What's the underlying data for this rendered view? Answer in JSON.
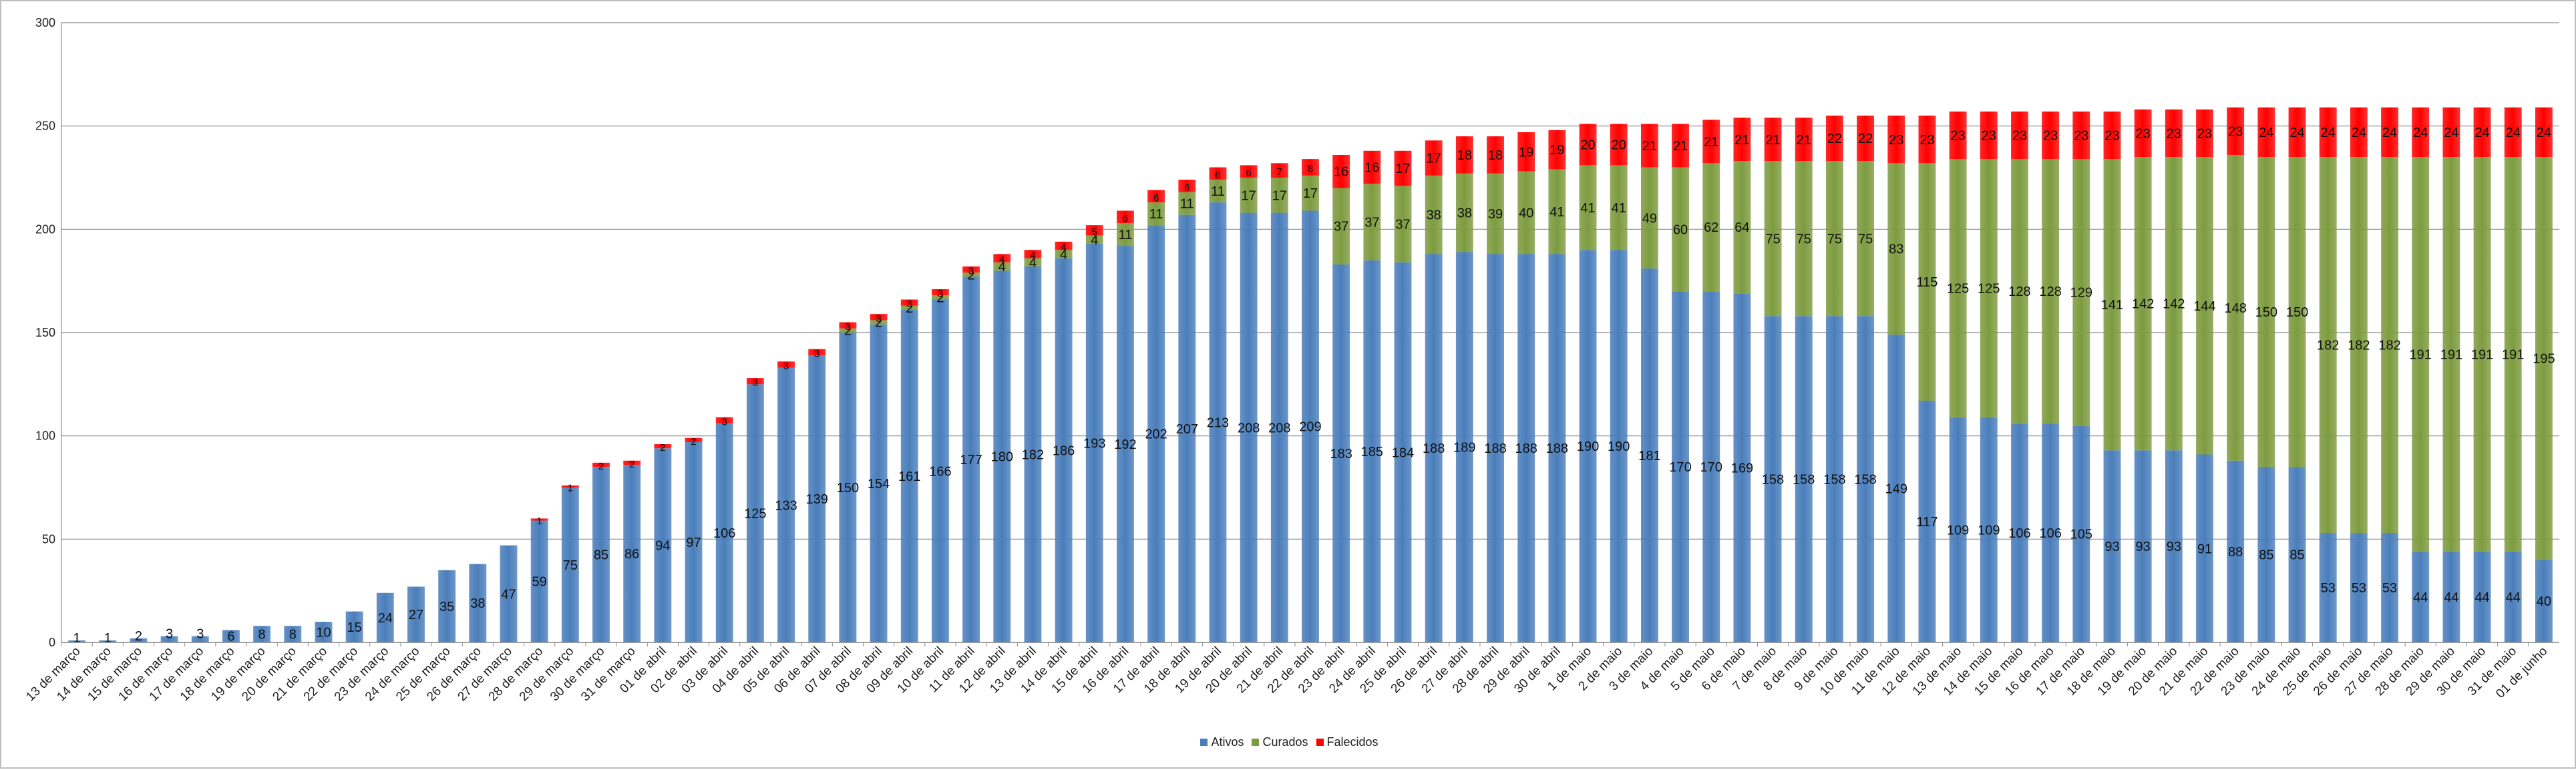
{
  "chart_data": {
    "type": "bar",
    "stacked": true,
    "ylim": [
      0,
      300
    ],
    "yticks": [
      0,
      50,
      100,
      150,
      200,
      250,
      300
    ],
    "grid": true,
    "legend_position": "bottom",
    "categories": [
      "13 de março",
      "14 de março",
      "15 de março",
      "16 de março",
      "17 de março",
      "18 de março",
      "19 de março",
      "20 de março",
      "21 de março",
      "22 de março",
      "23 de março",
      "24 de março",
      "25 de março",
      "26 de março",
      "27 de março",
      "28 de março",
      "29 de março",
      "30 de março",
      "31 de março",
      "01 de abril",
      "02 de abril",
      "03 de abril",
      "04 de abril",
      "05 de abril",
      "06 de abril",
      "07 de abril",
      "08 de abril",
      "09 de abril",
      "10 de abril",
      "11 de abril",
      "12 de abril",
      "13 de abril",
      "14 de abril",
      "15 de abril",
      "16 de abril",
      "17 de abril",
      "18 de abril",
      "19 de abril",
      "20 de abril",
      "21 de abril",
      "22 de abril",
      "23 de abril",
      "24 de abril",
      "25 de abril",
      "26 de abril",
      "27 de abril",
      "28 de abril",
      "29 de abril",
      "30 de abril",
      "1 de maio",
      "2 de maio",
      "3 de maio",
      "4 de maio",
      "5 de maio",
      "6 de maio",
      "7 de maio",
      "8 de maio",
      "9 de maio",
      "10 de maio",
      "11 de maio",
      "12 de maio",
      "13 de maio",
      "14 de maio",
      "15 de maio",
      "16 de maio",
      "17 de maio",
      "18 de maio",
      "19 de maio",
      "20 de maio",
      "21 de maio",
      "22 de maio",
      "23 de maio",
      "24 de maio",
      "25 de maio",
      "26 de maio",
      "27 de maio",
      "28 de maio",
      "29 de maio",
      "30 de maio",
      "31 de maio",
      "01 de junho"
    ],
    "series": [
      {
        "name": "Ativos",
        "color": "#4a7ebb",
        "values": [
          1,
          1,
          2,
          3,
          3,
          6,
          8,
          8,
          10,
          15,
          24,
          27,
          35,
          38,
          47,
          59,
          75,
          85,
          86,
          94,
          97,
          106,
          125,
          133,
          139,
          150,
          154,
          161,
          166,
          177,
          180,
          182,
          186,
          193,
          192,
          202,
          207,
          213,
          208,
          208,
          209,
          183,
          185,
          184,
          188,
          189,
          188,
          188,
          188,
          190,
          190,
          181,
          170,
          170,
          169,
          158,
          158,
          158,
          158,
          149,
          117,
          109,
          109,
          106,
          106,
          105,
          93,
          93,
          93,
          91,
          88,
          85,
          85,
          53,
          53,
          53,
          44,
          44,
          44,
          44,
          40
        ]
      },
      {
        "name": "Curados",
        "color": "#7d9b3f",
        "values": [
          0,
          0,
          0,
          0,
          0,
          0,
          0,
          0,
          0,
          0,
          0,
          0,
          0,
          0,
          0,
          0,
          0,
          0,
          0,
          0,
          0,
          0,
          0,
          0,
          0,
          2,
          2,
          2,
          2,
          2,
          4,
          4,
          4,
          4,
          11,
          11,
          11,
          11,
          17,
          17,
          17,
          37,
          37,
          37,
          38,
          38,
          39,
          40,
          41,
          41,
          41,
          49,
          60,
          62,
          64,
          75,
          75,
          75,
          75,
          83,
          115,
          125,
          125,
          128,
          128,
          129,
          141,
          142,
          142,
          144,
          148,
          150,
          150,
          182,
          182,
          182,
          191,
          191,
          191,
          191,
          195
        ]
      },
      {
        "name": "Falecidos",
        "color": "#ff0000",
        "values": [
          0,
          0,
          0,
          0,
          0,
          0,
          0,
          0,
          0,
          0,
          0,
          0,
          0,
          0,
          0,
          1,
          1,
          2,
          2,
          2,
          2,
          3,
          3,
          3,
          3,
          3,
          3,
          3,
          3,
          3,
          4,
          4,
          4,
          5,
          6,
          6,
          6,
          6,
          6,
          7,
          8,
          16,
          16,
          17,
          17,
          18,
          18,
          19,
          19,
          20,
          20,
          21,
          21,
          21,
          21,
          21,
          21,
          22,
          22,
          23,
          23,
          23,
          23,
          23,
          23,
          23,
          23,
          23,
          23,
          23,
          23,
          24,
          24,
          24,
          24,
          24,
          24,
          24,
          24,
          24,
          24
        ]
      }
    ],
    "value_labels": {
      "Ativos": [
        "1",
        "1",
        "2",
        "3",
        "3",
        "6",
        "8",
        "8",
        "10",
        "15",
        "24",
        "27",
        "35",
        "38",
        "47",
        "59",
        "75",
        "85",
        "86",
        "94",
        "97",
        "106",
        "125",
        "133",
        "139",
        "150",
        "154",
        "161",
        "166",
        "177",
        "180",
        "182",
        "186",
        "193",
        "192",
        "202",
        "207",
        "213",
        "208",
        "208",
        "209",
        "183",
        "185",
        "184",
        "188",
        "189",
        "188",
        "188",
        "188",
        "190",
        "190",
        "181",
        "170",
        "170",
        "169",
        "158",
        "158",
        "158",
        "158",
        "149",
        "117",
        "109",
        "109",
        "106",
        "106",
        "105",
        "93",
        "93",
        "93",
        "91",
        "88",
        "85",
        "85",
        "53",
        "53",
        "53",
        "44",
        "44",
        "44",
        "44",
        "40"
      ],
      "Curados": [
        "",
        "",
        "",
        "",
        "",
        "",
        "",
        "",
        "",
        "",
        "",
        "",
        "",
        "",
        "",
        "",
        "",
        "",
        "",
        "",
        "",
        "",
        "",
        "",
        "",
        "2",
        "2",
        "2",
        "2",
        "2",
        "4",
        "4",
        "4",
        "4",
        "11",
        "11",
        "11",
        "11",
        "17",
        "17",
        "17",
        "37",
        "37",
        "37",
        "38",
        "38",
        "39",
        "40",
        "41",
        "41",
        "41",
        "49",
        "60",
        "62",
        "64",
        "75",
        "75",
        "75",
        "75",
        "83",
        "115",
        "125",
        "125",
        "128",
        "128",
        "129",
        "141",
        "142",
        "142",
        "144",
        "148",
        "150",
        "150",
        "182",
        "182",
        "182",
        "191",
        "191",
        "191",
        "191",
        "195"
      ],
      "Falecidos": [
        "",
        "",
        "",
        "",
        "",
        "",
        "",
        "",
        "",
        "",
        "",
        "",
        "",
        "",
        "",
        "1",
        "1",
        "2",
        "2",
        "2",
        "2",
        "3",
        "3",
        "3",
        "3",
        "3",
        "3",
        "3",
        "3",
        "3",
        "4",
        "4",
        "4",
        "5",
        "6",
        "6",
        "6",
        "6",
        "6",
        "7",
        "8",
        "16",
        "16",
        "17",
        "17",
        "18",
        "18",
        "19",
        "19",
        "20",
        "20",
        "21",
        "21",
        "21",
        "21",
        "21",
        "21",
        "22",
        "22",
        "23",
        "23",
        "23",
        "23",
        "23",
        "23",
        "23",
        "23",
        "23",
        "23",
        "23",
        "23",
        "24",
        "24",
        "24",
        "24",
        "24",
        "24",
        "24",
        "24",
        "24",
        "24"
      ]
    }
  }
}
